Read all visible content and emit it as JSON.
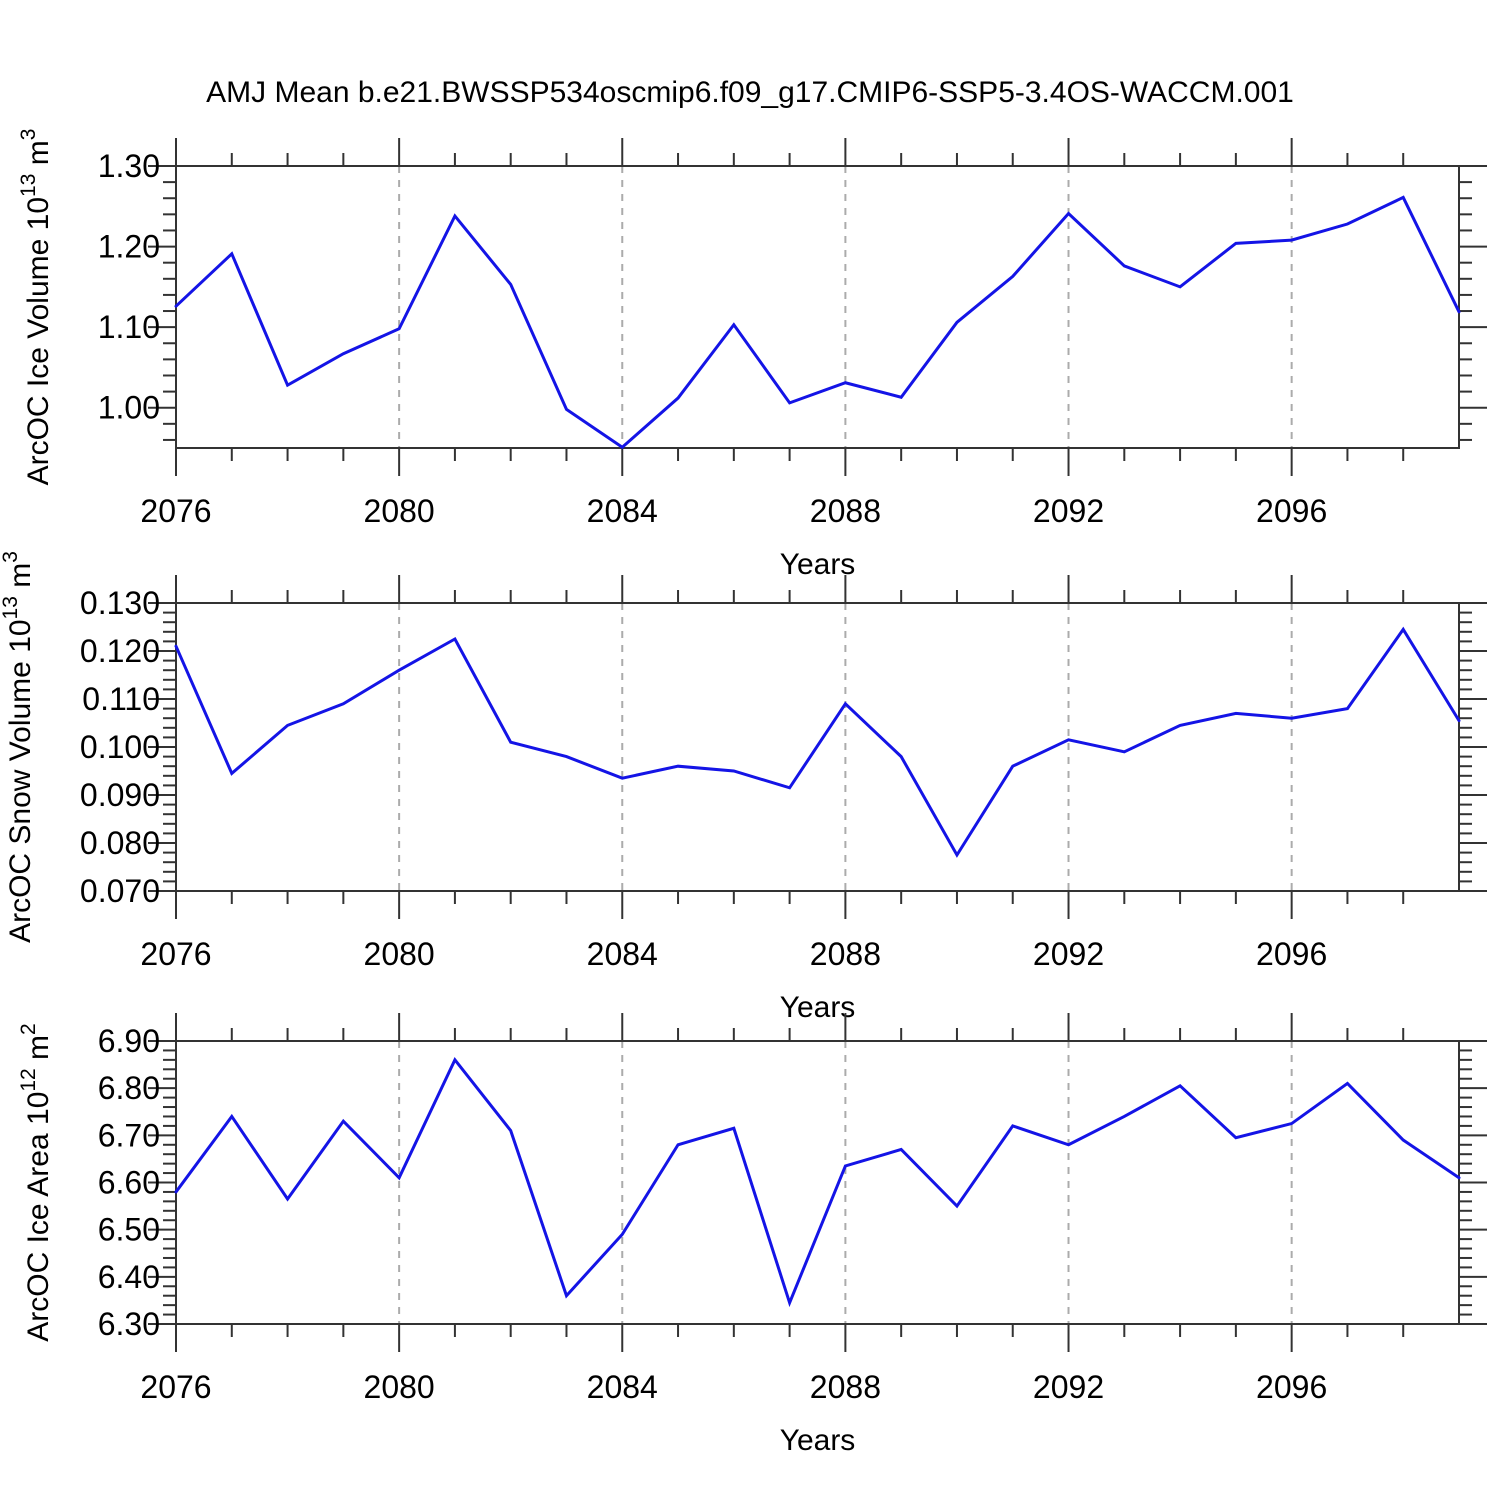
{
  "title": "AMJ Mean b.e21.BWSSP534oscmip6.f09_g17.CMIP6-SSP5-3.4OS-WACCM.001",
  "colors": {
    "line": "#1414e6",
    "grid": "#ababab",
    "axis": "#333333",
    "text": "#000000",
    "background": "#ffffff"
  },
  "x_axis": {
    "label": "Years",
    "range": [
      2076,
      2099
    ],
    "major_ticks": [
      2076,
      2080,
      2084,
      2088,
      2092,
      2096
    ],
    "minor_step": 1,
    "gridlines": [
      2080,
      2084,
      2088,
      2092,
      2096
    ]
  },
  "chart_data": [
    {
      "type": "line",
      "id": "ice-volume",
      "ylabel": {
        "prefix": "ArcOC Ice Volume 10",
        "sup": "13",
        "unit": " m",
        "unit_sup": "3"
      },
      "xlabel": "Years",
      "ylim": [
        0.95,
        1.3
      ],
      "ytick_vals": [
        1.0,
        1.1,
        1.2,
        1.3
      ],
      "ytick_labels": [
        "1.00",
        "1.10",
        "1.20",
        "1.30"
      ],
      "y_minor_step": 0.02,
      "grid": "x-dashed",
      "legend": "none",
      "years": [
        2076,
        2077,
        2078,
        2079,
        2080,
        2081,
        2082,
        2083,
        2084,
        2085,
        2086,
        2087,
        2088,
        2089,
        2090,
        2091,
        2092,
        2093,
        2094,
        2095,
        2096,
        2097,
        2098,
        2099
      ],
      "values": [
        1.126,
        1.191,
        1.028,
        1.067,
        1.098,
        1.238,
        1.153,
        0.998,
        0.951,
        1.012,
        1.103,
        1.006,
        1.031,
        1.013,
        1.106,
        1.163,
        1.241,
        1.176,
        1.15,
        1.204,
        1.208,
        1.228,
        1.261,
        1.119
      ]
    },
    {
      "type": "line",
      "id": "snow-volume",
      "ylabel": {
        "prefix": "ArcOC Snow Volume 10",
        "sup": "13",
        "unit": " m",
        "unit_sup": "3"
      },
      "xlabel": "Years",
      "ylim": [
        0.07,
        0.13
      ],
      "ytick_vals": [
        0.07,
        0.08,
        0.09,
        0.1,
        0.11,
        0.12,
        0.13
      ],
      "ytick_labels": [
        "0.070",
        "0.080",
        "0.090",
        "0.100",
        "0.110",
        "0.120",
        "0.130"
      ],
      "y_minor_step": 0.002,
      "grid": "x-dashed",
      "legend": "none",
      "years": [
        2076,
        2077,
        2078,
        2079,
        2080,
        2081,
        2082,
        2083,
        2084,
        2085,
        2086,
        2087,
        2088,
        2089,
        2090,
        2091,
        2092,
        2093,
        2094,
        2095,
        2096,
        2097,
        2098,
        2099
      ],
      "values": [
        0.121,
        0.0945,
        0.1045,
        0.109,
        0.116,
        0.1225,
        0.101,
        0.098,
        0.0935,
        0.096,
        0.095,
        0.0915,
        0.109,
        0.098,
        0.0775,
        0.096,
        0.1015,
        0.099,
        0.1045,
        0.107,
        0.106,
        0.108,
        0.1245,
        0.1055
      ]
    },
    {
      "type": "line",
      "id": "ice-area",
      "ylabel": {
        "prefix": "ArcOC Ice Area 10",
        "sup": "12",
        "unit": " m",
        "unit_sup": "2"
      },
      "xlabel": "Years",
      "ylim": [
        6.3,
        6.9
      ],
      "ytick_vals": [
        6.3,
        6.4,
        6.5,
        6.6,
        6.7,
        6.8,
        6.9
      ],
      "ytick_labels": [
        "6.30",
        "6.40",
        "6.50",
        "6.60",
        "6.70",
        "6.80",
        "6.90"
      ],
      "y_minor_step": 0.02,
      "grid": "x-dashed",
      "legend": "none",
      "years": [
        2076,
        2077,
        2078,
        2079,
        2080,
        2081,
        2082,
        2083,
        2084,
        2085,
        2086,
        2087,
        2088,
        2089,
        2090,
        2091,
        2092,
        2093,
        2094,
        2095,
        2096,
        2097,
        2098,
        2099
      ],
      "values": [
        6.58,
        6.74,
        6.565,
        6.73,
        6.61,
        6.86,
        6.71,
        6.36,
        6.49,
        6.68,
        6.715,
        6.345,
        6.635,
        6.67,
        6.55,
        6.72,
        6.68,
        6.74,
        6.805,
        6.695,
        6.725,
        6.81,
        6.69,
        6.61
      ]
    }
  ]
}
